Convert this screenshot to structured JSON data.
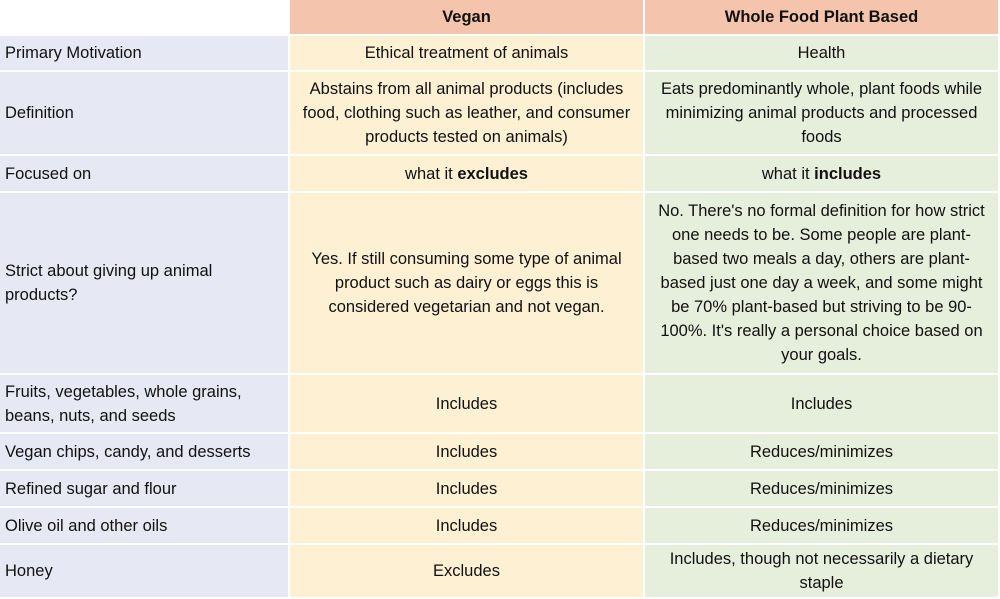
{
  "header": {
    "corner": "",
    "vegan": "Vegan",
    "wfpb": "Whole Food Plant Based"
  },
  "rows": [
    {
      "label": "Primary Motivation",
      "vegan": "Ethical treatment of animals",
      "wfpb": "Health"
    },
    {
      "label": "Definition",
      "vegan": "Abstains from all animal products (includes food, clothing such as leather, and consumer products tested on animals)",
      "wfpb": "Eats predominantly whole, plant foods while minimizing animal products and processed foods"
    },
    {
      "label": "Focused on",
      "vegan_prefix": "what it ",
      "vegan_bold": "excludes",
      "wfpb_prefix": "what it ",
      "wfpb_bold": "includes"
    },
    {
      "label": "Strict about giving up animal products?",
      "vegan": "Yes. If still consuming some type of animal product such as dairy or eggs this is considered vegetarian and not vegan.",
      "wfpb": "No. There's no formal definition for how strict one needs to be. Some people are plant-based two meals a day, others are plant-based just one day a week, and some might be 70% plant-based but striving to be 90-100%. It's really a personal choice based on your goals."
    },
    {
      "label": "Fruits, vegetables, whole grains, beans, nuts, and seeds",
      "vegan": "Includes",
      "wfpb": "Includes"
    },
    {
      "label": "Vegan chips, candy, and desserts",
      "vegan": "Includes",
      "wfpb": "Reduces/minimizes"
    },
    {
      "label": "Refined sugar and flour",
      "vegan": "Includes",
      "wfpb": "Reduces/minimizes"
    },
    {
      "label": "Olive oil and other oils",
      "vegan": "Includes",
      "wfpb": "Reduces/minimizes"
    },
    {
      "label": "Honey",
      "vegan": "Excludes",
      "wfpb": "Includes, though not necessarily a dietary staple"
    }
  ],
  "colors": {
    "header": "#f5c4ad",
    "label_column": "#e6e9f3",
    "vegan_column": "#fdf0d3",
    "wfpb_column": "#e5efdc"
  }
}
